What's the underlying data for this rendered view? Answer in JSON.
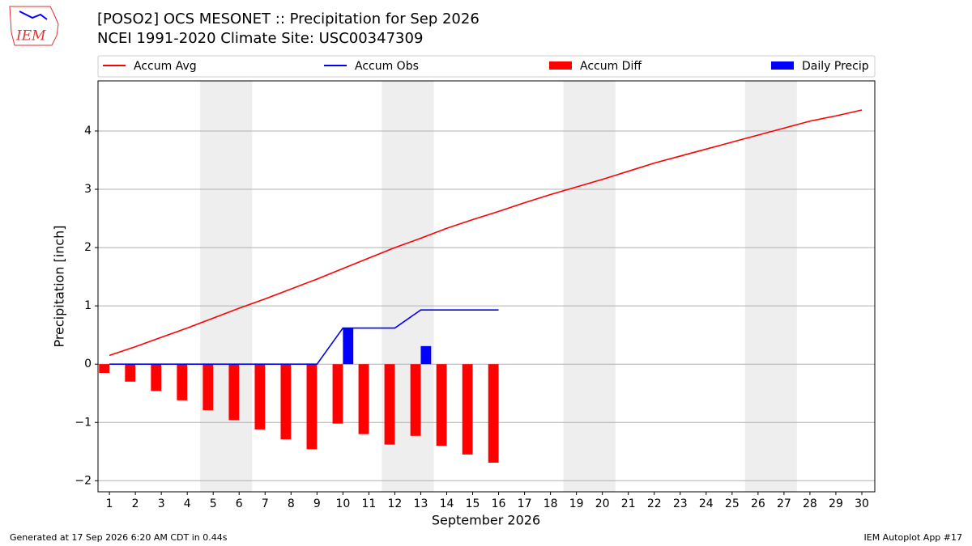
{
  "chart_data": {
    "type": "combo",
    "logo_text": "IEM",
    "title": "[POSO2] OCS MESONET :: Precipitation for Sep 2026",
    "subtitle": "NCEI 1991-2020 Climate Site: USC00347309",
    "x_label": "September 2026",
    "y_label": "Precipitation [inch]",
    "footer_left": "Generated at 17 Sep 2026 6:20 AM CDT in 0.44s",
    "footer_right": "IEM Autoplot App #17",
    "x": [
      1,
      2,
      3,
      4,
      5,
      6,
      7,
      8,
      9,
      10,
      11,
      12,
      13,
      14,
      15,
      16,
      17,
      18,
      19,
      20,
      21,
      22,
      23,
      24,
      25,
      26,
      27,
      28,
      29,
      30
    ],
    "xlim": [
      0.56,
      30.5
    ],
    "xticks": [
      1,
      2,
      3,
      4,
      5,
      6,
      7,
      8,
      9,
      10,
      11,
      12,
      13,
      14,
      15,
      16,
      17,
      18,
      19,
      20,
      21,
      22,
      23,
      24,
      25,
      26,
      27,
      28,
      29,
      30
    ],
    "ylim": [
      -2.19,
      4.86
    ],
    "yticks": [
      {
        "value": -2,
        "label": "−2"
      },
      {
        "value": -1,
        "label": "−1"
      },
      0,
      1,
      2,
      3,
      4
    ],
    "grid": true,
    "shaded_x_ranges": [
      [
        4.5,
        6.5
      ],
      [
        11.5,
        13.5
      ],
      [
        18.5,
        20.5
      ],
      [
        25.5,
        27.5
      ]
    ],
    "series": [
      {
        "name": "Accum Avg",
        "kind": "line",
        "color": "#ff0000",
        "values": [
          0.15,
          0.3,
          0.46,
          0.62,
          0.79,
          0.96,
          1.12,
          1.29,
          1.46,
          1.64,
          1.82,
          2.0,
          2.16,
          2.33,
          2.48,
          2.62,
          2.77,
          2.91,
          3.04,
          3.17,
          3.31,
          3.45,
          3.57,
          3.69,
          3.81,
          3.93,
          4.05,
          4.17,
          4.26,
          4.36
        ]
      },
      {
        "name": "Accum Obs",
        "kind": "line",
        "color": "#0000ff",
        "values": [
          0,
          0,
          0,
          0,
          0,
          0,
          0,
          0,
          0,
          0.62,
          0.62,
          0.62,
          0.93,
          0.93,
          0.93,
          0.93,
          null,
          null,
          null,
          null,
          null,
          null,
          null,
          null,
          null,
          null,
          null,
          null,
          null,
          null
        ]
      },
      {
        "name": "Accum Diff",
        "kind": "bar",
        "align": "left",
        "color": "#ff0000",
        "values": [
          -0.15,
          -0.3,
          -0.46,
          -0.62,
          -0.79,
          -0.96,
          -1.12,
          -1.29,
          -1.46,
          -1.02,
          -1.2,
          -1.38,
          -1.23,
          -1.4,
          -1.55,
          -1.69,
          null,
          null,
          null,
          null,
          null,
          null,
          null,
          null,
          null,
          null,
          null,
          null,
          null,
          null
        ]
      },
      {
        "name": "Daily Precip",
        "kind": "bar",
        "align": "right",
        "color": "#0000ff",
        "values": [
          0,
          0,
          0,
          0,
          0,
          0,
          0,
          0,
          0,
          0.62,
          0,
          0,
          0.31,
          0,
          0,
          0,
          null,
          null,
          null,
          null,
          null,
          null,
          null,
          null,
          null,
          null,
          null,
          null,
          null,
          null
        ]
      }
    ]
  }
}
